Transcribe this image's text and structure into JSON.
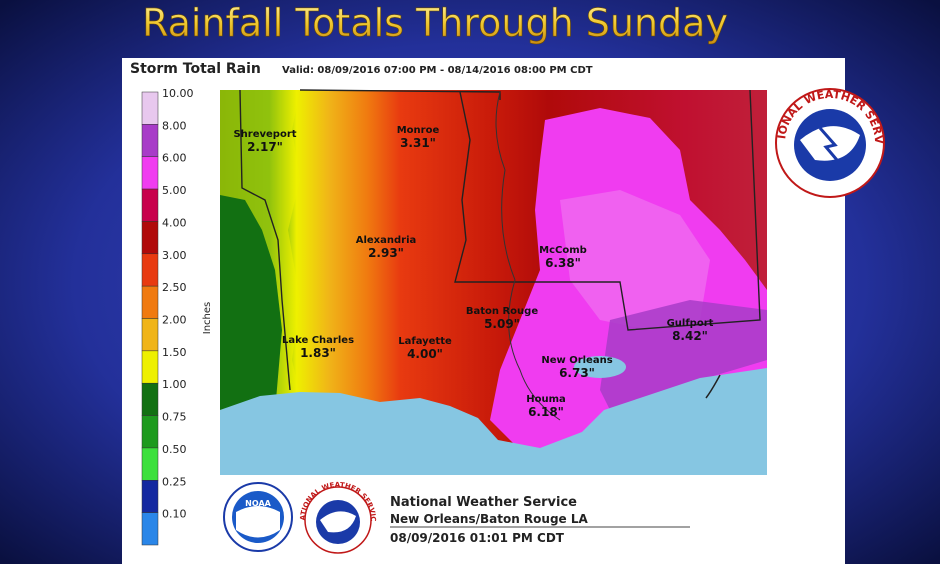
{
  "header": {
    "title": "Rainfall Totals Through Sunday"
  },
  "map": {
    "title": "Storm Total Rain",
    "valid": "Valid: 08/09/2016 07:00 PM - 08/14/2016 08:00 PM CDT",
    "legend": {
      "unit": "Inches",
      "items": [
        {
          "label": "10.00",
          "color": "#e8c8ee"
        },
        {
          "label": "8.00",
          "color": "#a83cc8"
        },
        {
          "label": "6.00",
          "color": "#f03cf0"
        },
        {
          "label": "5.00",
          "color": "#c8004c"
        },
        {
          "label": "4.00",
          "color": "#b00a0a"
        },
        {
          "label": "3.00",
          "color": "#e83a10"
        },
        {
          "label": "2.50",
          "color": "#f07a10"
        },
        {
          "label": "2.00",
          "color": "#f0b418"
        },
        {
          "label": "1.50",
          "color": "#eef000"
        },
        {
          "label": "1.00",
          "color": "#127012"
        },
        {
          "label": "0.75",
          "color": "#1e9a1e"
        },
        {
          "label": "0.50",
          "color": "#3ce03c"
        },
        {
          "label": "0.25",
          "color": "#1428a0"
        },
        {
          "label": "0.10",
          "color": "#2a86e8"
        }
      ]
    },
    "cities": [
      {
        "name": "Shreveport",
        "amount": "2.17\""
      },
      {
        "name": "Monroe",
        "amount": "3.31\""
      },
      {
        "name": "Alexandria",
        "amount": "2.93\""
      },
      {
        "name": "McComb",
        "amount": "6.38\""
      },
      {
        "name": "Baton Rouge",
        "amount": "5.09\""
      },
      {
        "name": "Lake Charles",
        "amount": "1.83\""
      },
      {
        "name": "Lafayette",
        "amount": "4.00\""
      },
      {
        "name": "Gulfport",
        "amount": "8.42\""
      },
      {
        "name": "New Orleans",
        "amount": "6.73\""
      },
      {
        "name": "Houma",
        "amount": "6.18\""
      }
    ]
  },
  "footer": {
    "office": "National Weather Service",
    "location": "New Orleans/Baton Rouge LA",
    "issued": "08/09/2016 01:01 PM CDT",
    "nws_logo": "NATIONAL WEATHER SERVICE",
    "noaa_logo": "NOAA"
  }
}
